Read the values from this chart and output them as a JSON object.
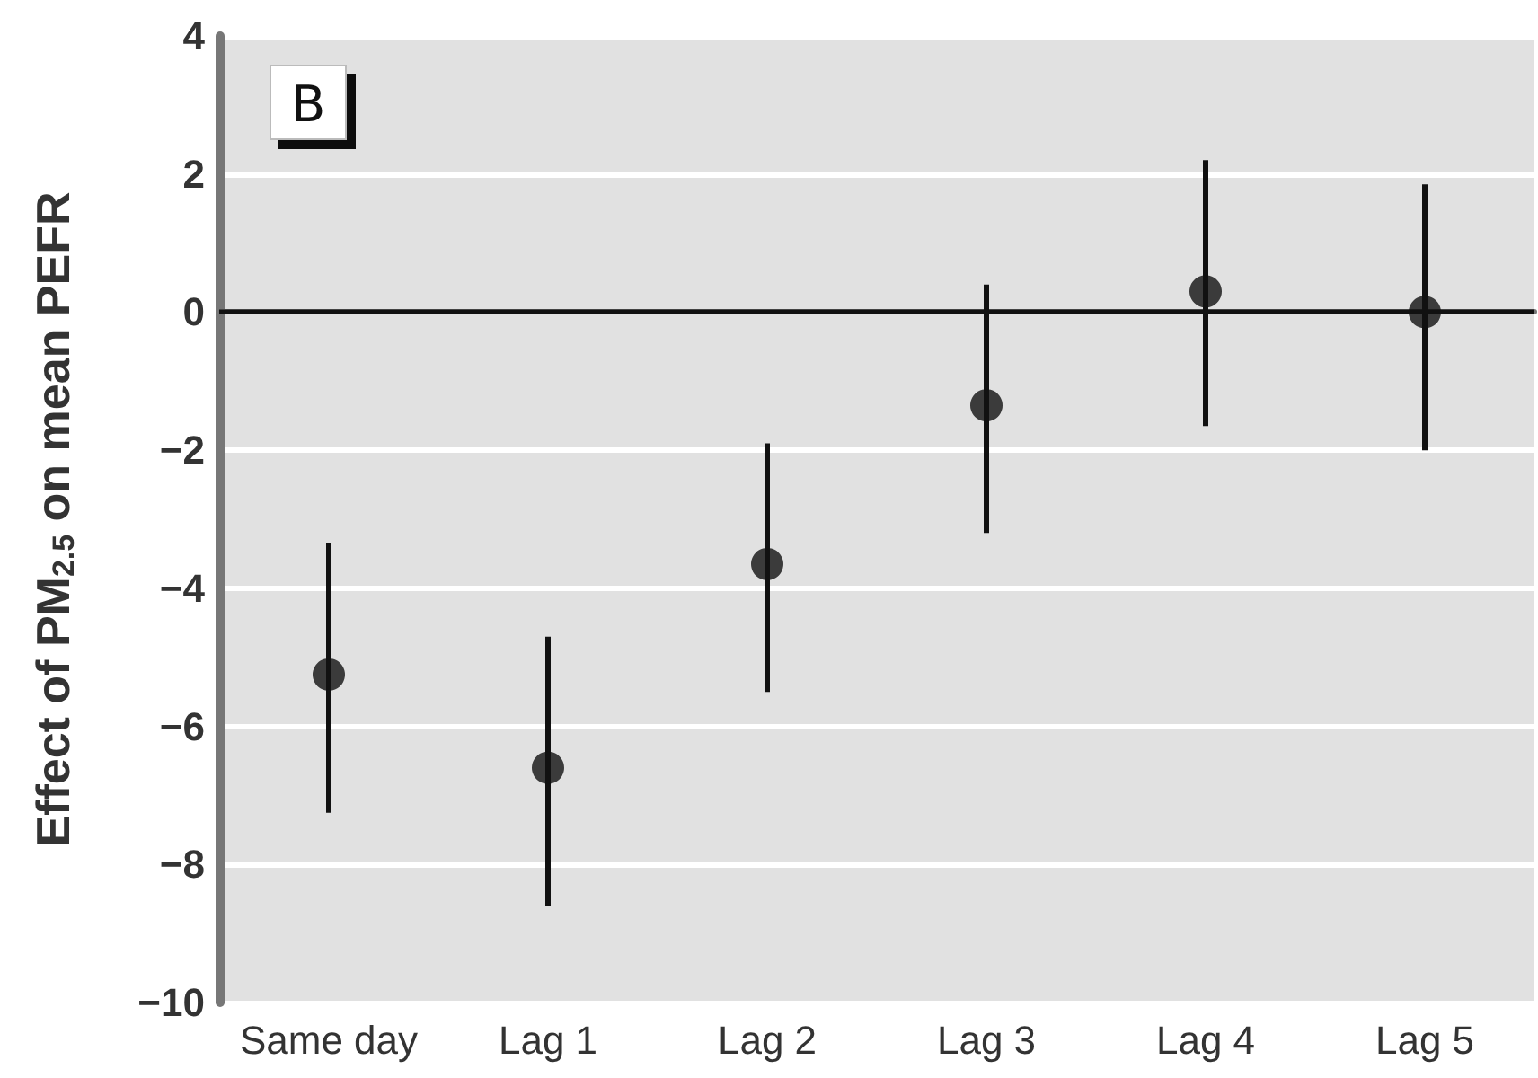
{
  "chart_data": {
    "type": "scatter",
    "ylabel": "Effect of PM$_{2.5}$ on mean PEFR",
    "annotations": [
      "B"
    ],
    "categories": [
      "Same day",
      "Lag 1",
      "Lag 2",
      "Lag 3",
      "Lag 4",
      "Lag 5"
    ],
    "series": [
      {
        "color": "#111111",
        "values": [
          -5.25,
          -6.6,
          -3.65,
          -1.35,
          0.3,
          0
        ],
        "errors": [
          [
            -7.25,
            -3.35
          ],
          [
            -8.6,
            -4.7
          ],
          [
            -5.5,
            -1.9
          ],
          [
            -3.2,
            0.4
          ],
          [
            -1.65,
            2.2
          ],
          [
            -2.0,
            1.85
          ]
        ]
      }
    ],
    "ylim": [
      -10,
      4
    ],
    "yticks": [
      -10,
      -8,
      -6,
      -4,
      -2,
      0,
      2,
      4
    ],
    "ref_lines": [
      {
        "axis": "y",
        "value": 0,
        "color": "#111111"
      }
    ],
    "grid": "y",
    "marker": "circle"
  }
}
